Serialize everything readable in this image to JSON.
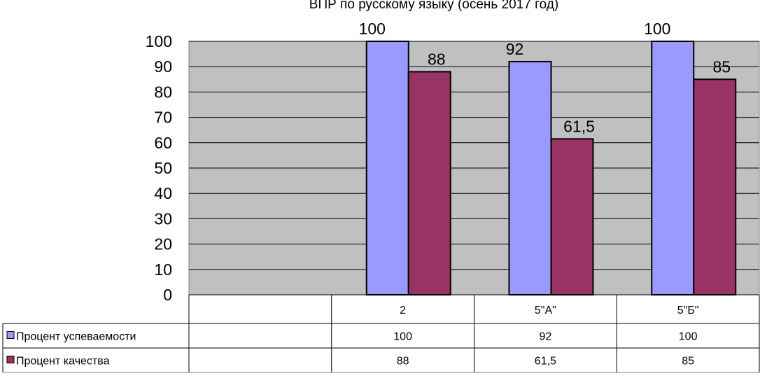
{
  "chart_data": {
    "type": "bar",
    "title": "ВПР по русскому языку (осень 2017 год)",
    "categories": [
      "",
      "2",
      "5\"А\"",
      "5\"Б\""
    ],
    "series": [
      {
        "name": "Процент успеваемости",
        "values": [
          null,
          100,
          92,
          100
        ],
        "labels": [
          "",
          "100",
          "92",
          "100"
        ],
        "color": "#9999ff"
      },
      {
        "name": "Процент качества",
        "values": [
          null,
          88,
          61.5,
          85
        ],
        "labels": [
          "",
          "88",
          "61,5",
          "85"
        ],
        "color": "#993366"
      }
    ],
    "ylim": [
      0,
      100
    ],
    "yticks": [
      0,
      10,
      20,
      30,
      40,
      50,
      60,
      70,
      80,
      90,
      100
    ],
    "grid": true,
    "plot_background": "#c0c0c0",
    "legend": "data-table"
  }
}
